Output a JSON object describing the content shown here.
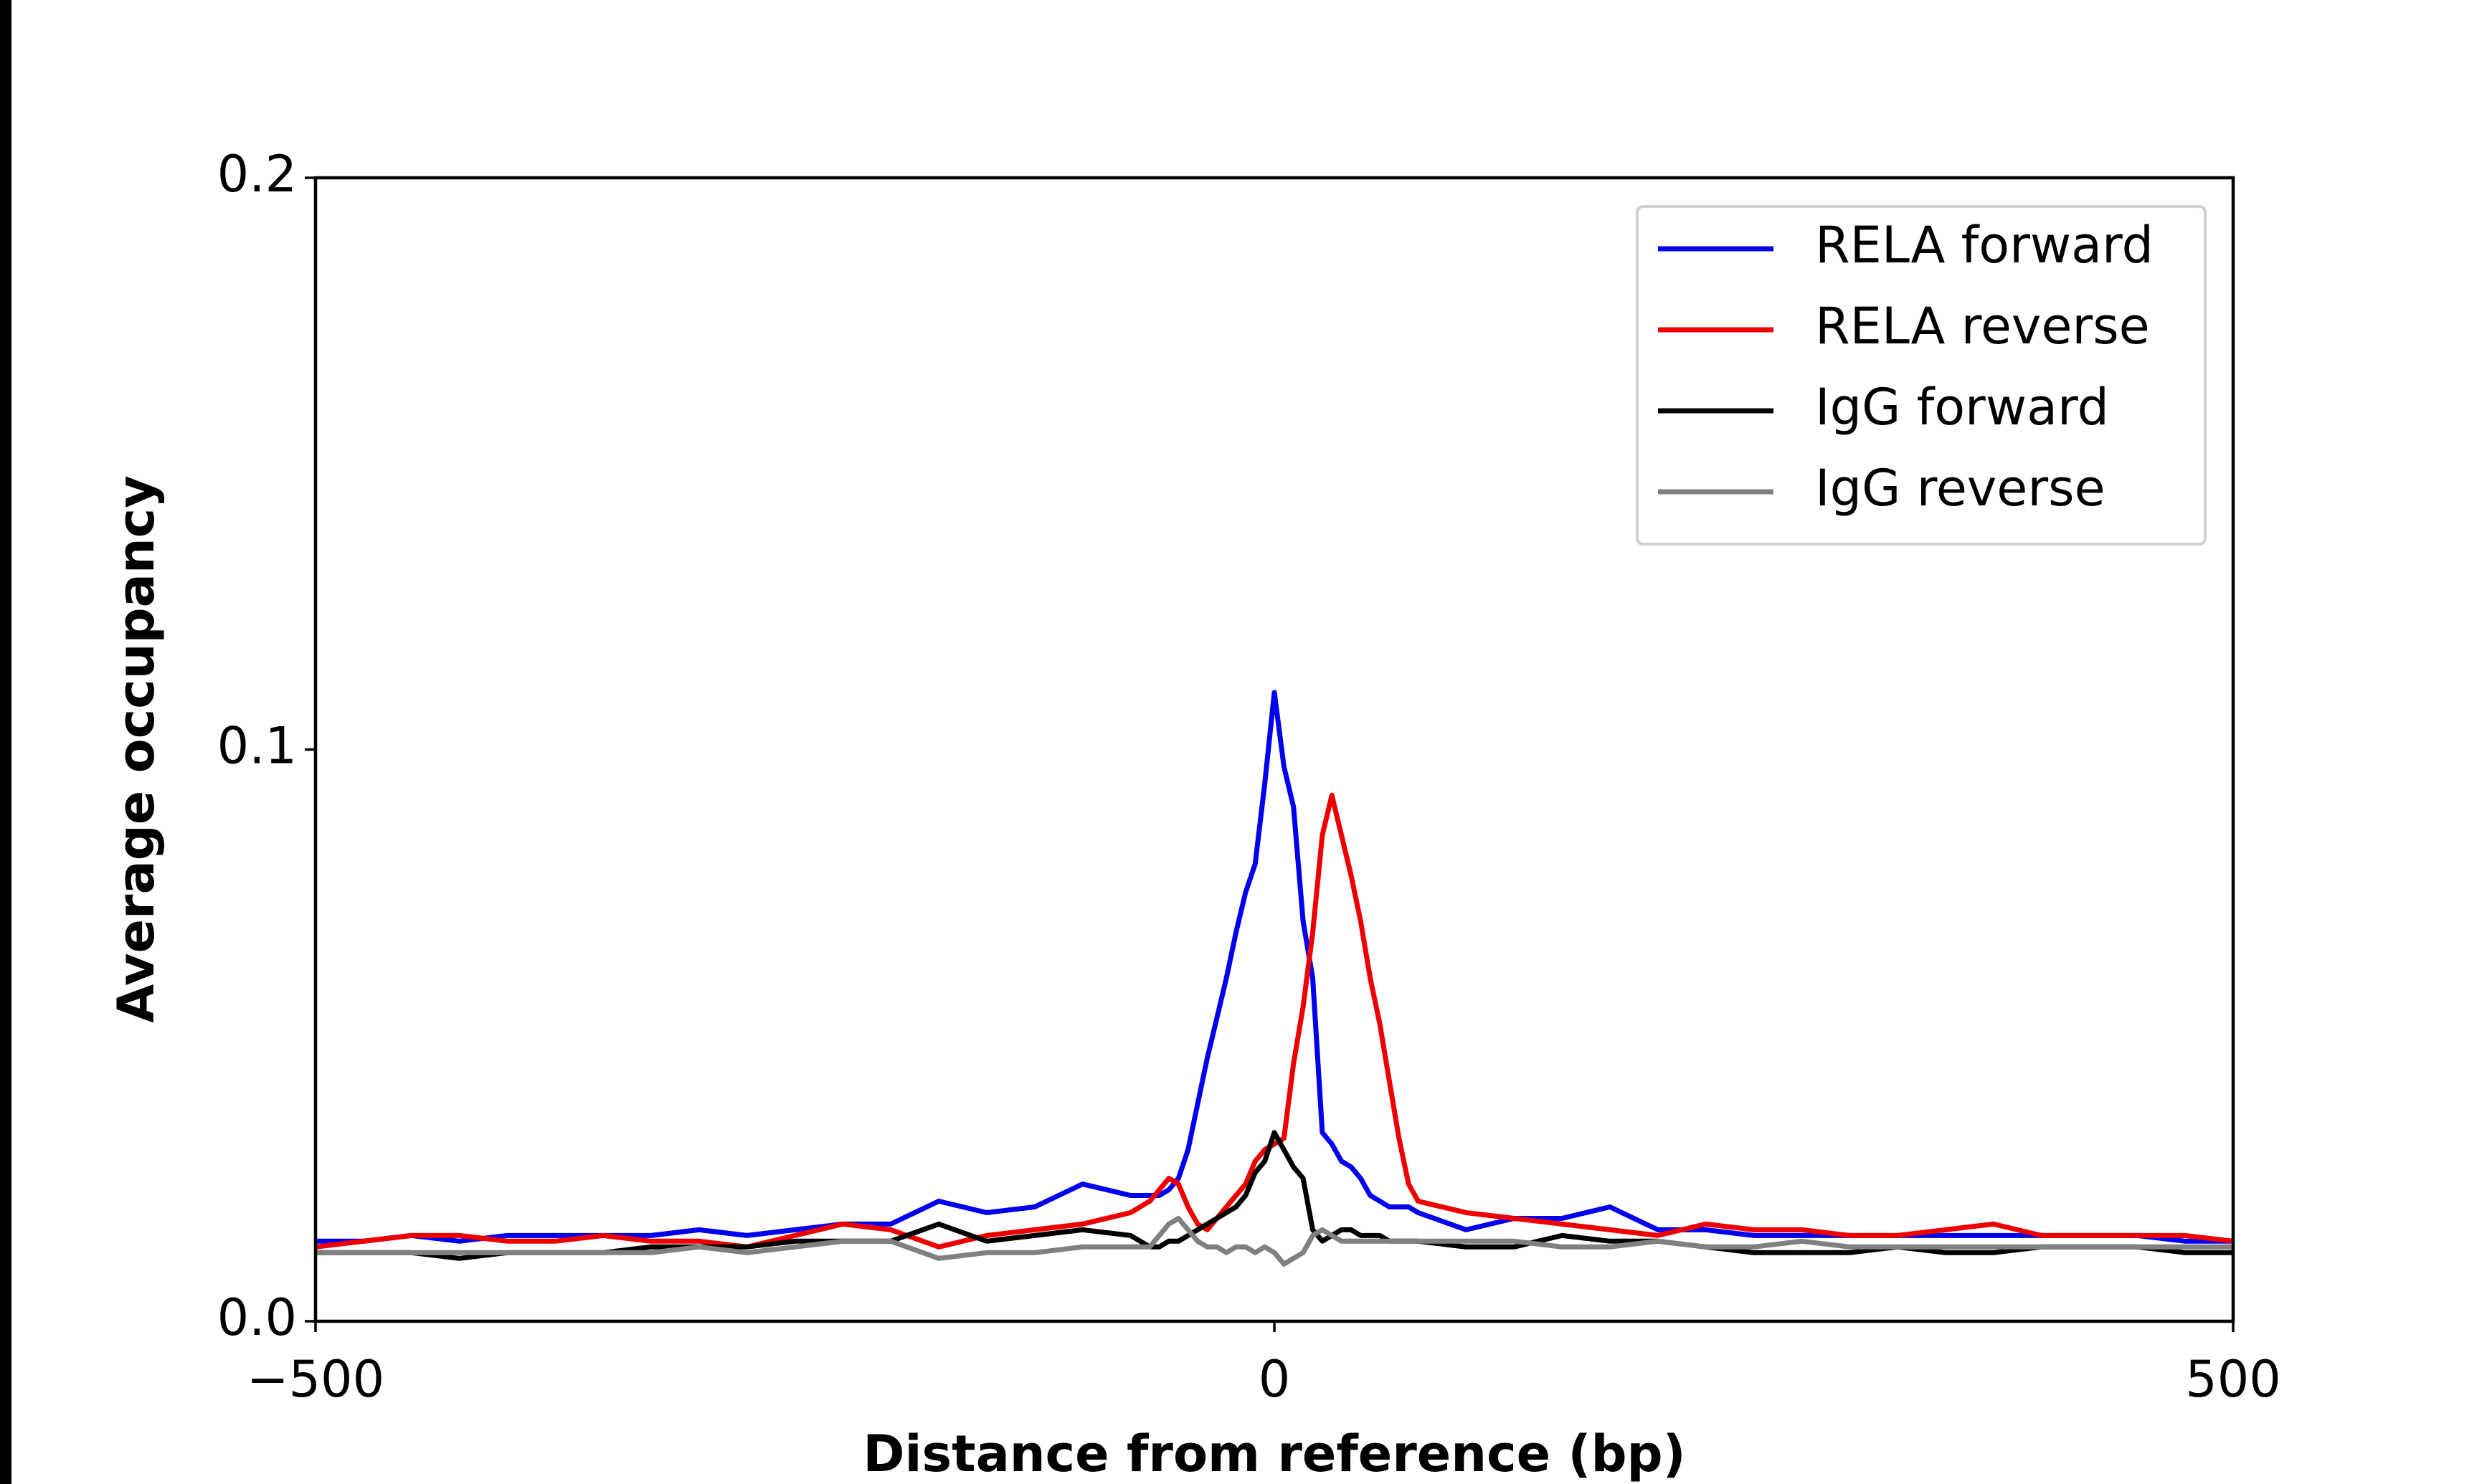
{
  "chart_data": {
    "type": "line",
    "x_label": "Distance from reference (bp)",
    "y_label": "Average occupancy",
    "x": [
      -500,
      -475,
      -450,
      -425,
      -400,
      -375,
      -350,
      -325,
      -300,
      -275,
      -250,
      -225,
      -200,
      -175,
      -150,
      -125,
      -100,
      -75,
      -70,
      -65,
      -60,
      -55,
      -50,
      -45,
      -40,
      -35,
      -30,
      -25,
      -20,
      -15,
      -10,
      -5,
      0,
      5,
      10,
      15,
      20,
      25,
      30,
      35,
      40,
      45,
      50,
      55,
      60,
      65,
      70,
      75,
      100,
      125,
      150,
      175,
      200,
      225,
      250,
      275,
      300,
      325,
      350,
      375,
      400,
      425,
      450,
      475,
      500
    ],
    "series": [
      {
        "name": "RELA forward",
        "color": "#0000ee",
        "values": [
          0.014,
          0.014,
          0.015,
          0.014,
          0.015,
          0.015,
          0.015,
          0.015,
          0.016,
          0.015,
          0.016,
          0.017,
          0.017,
          0.021,
          0.019,
          0.02,
          0.024,
          0.022,
          0.022,
          0.022,
          0.022,
          0.023,
          0.025,
          0.03,
          0.038,
          0.046,
          0.053,
          0.06,
          0.068,
          0.075,
          0.08,
          0.094,
          0.11,
          0.097,
          0.09,
          0.07,
          0.06,
          0.033,
          0.031,
          0.028,
          0.027,
          0.025,
          0.022,
          0.021,
          0.02,
          0.02,
          0.02,
          0.019,
          0.016,
          0.018,
          0.018,
          0.02,
          0.016,
          0.016,
          0.015,
          0.015,
          0.015,
          0.015,
          0.015,
          0.015,
          0.015,
          0.015,
          0.015,
          0.014,
          0.014
        ]
      },
      {
        "name": "RELA reverse",
        "color": "#ee0000",
        "values": [
          0.013,
          0.014,
          0.015,
          0.015,
          0.014,
          0.014,
          0.015,
          0.014,
          0.014,
          0.013,
          0.015,
          0.017,
          0.016,
          0.013,
          0.015,
          0.016,
          0.017,
          0.019,
          0.02,
          0.021,
          0.023,
          0.025,
          0.024,
          0.02,
          0.017,
          0.016,
          0.018,
          0.02,
          0.022,
          0.024,
          0.028,
          0.03,
          0.031,
          0.032,
          0.045,
          0.055,
          0.068,
          0.085,
          0.092,
          0.085,
          0.078,
          0.07,
          0.06,
          0.052,
          0.042,
          0.032,
          0.024,
          0.021,
          0.019,
          0.018,
          0.017,
          0.016,
          0.015,
          0.017,
          0.016,
          0.016,
          0.015,
          0.015,
          0.016,
          0.017,
          0.015,
          0.015,
          0.015,
          0.015,
          0.014
        ]
      },
      {
        "name": "IgG forward",
        "color": "#000000",
        "values": [
          0.012,
          0.012,
          0.012,
          0.011,
          0.012,
          0.012,
          0.012,
          0.013,
          0.013,
          0.013,
          0.014,
          0.014,
          0.014,
          0.017,
          0.014,
          0.015,
          0.016,
          0.015,
          0.014,
          0.013,
          0.013,
          0.014,
          0.014,
          0.015,
          0.016,
          0.017,
          0.018,
          0.019,
          0.02,
          0.022,
          0.026,
          0.028,
          0.033,
          0.03,
          0.027,
          0.025,
          0.016,
          0.014,
          0.015,
          0.016,
          0.016,
          0.015,
          0.015,
          0.015,
          0.014,
          0.014,
          0.014,
          0.014,
          0.013,
          0.013,
          0.015,
          0.014,
          0.014,
          0.013,
          0.012,
          0.012,
          0.012,
          0.013,
          0.012,
          0.012,
          0.013,
          0.013,
          0.013,
          0.012,
          0.012
        ]
      },
      {
        "name": "IgG reverse",
        "color": "#808080",
        "values": [
          0.012,
          0.012,
          0.012,
          0.012,
          0.012,
          0.012,
          0.012,
          0.012,
          0.013,
          0.012,
          0.013,
          0.014,
          0.014,
          0.011,
          0.012,
          0.012,
          0.013,
          0.013,
          0.013,
          0.013,
          0.015,
          0.017,
          0.018,
          0.016,
          0.014,
          0.013,
          0.013,
          0.012,
          0.013,
          0.013,
          0.012,
          0.013,
          0.012,
          0.01,
          0.011,
          0.012,
          0.015,
          0.016,
          0.015,
          0.014,
          0.014,
          0.014,
          0.014,
          0.014,
          0.014,
          0.014,
          0.014,
          0.014,
          0.014,
          0.014,
          0.013,
          0.013,
          0.014,
          0.013,
          0.013,
          0.014,
          0.013,
          0.013,
          0.013,
          0.013,
          0.013,
          0.013,
          0.013,
          0.013,
          0.013
        ]
      }
    ],
    "xlim": [
      -500,
      500
    ],
    "xticks": [
      {
        "value": -500,
        "label": "−500"
      },
      0,
      500
    ],
    "ylim": [
      0,
      0.2
    ],
    "yticks": [
      {
        "value": 0,
        "label": "0.0"
      },
      0.1,
      0.2
    ],
    "grid": false,
    "legend": "upper right"
  }
}
